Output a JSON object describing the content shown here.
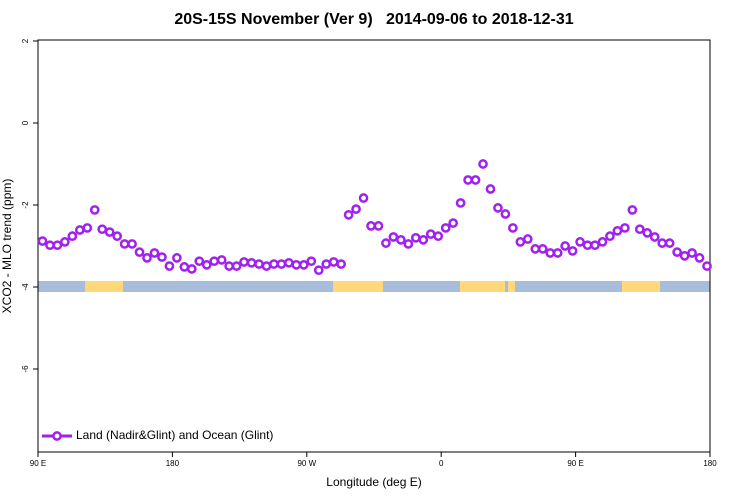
{
  "chart_data": {
    "type": "line",
    "title": "20S-15S November (Ver 9)   2014-09-06 to 2018-12-31",
    "x_label": "Longitude (deg E)",
    "y_label": "XCO2 - MLO trend (ppm)",
    "x": [
      93,
      98,
      103,
      108,
      113,
      118,
      123,
      128,
      133,
      138,
      143,
      148,
      153,
      158,
      163,
      168,
      173,
      178,
      183,
      188,
      193,
      198,
      203,
      208,
      213,
      218,
      223,
      228,
      233,
      238,
      243,
      248,
      253,
      258,
      263,
      268,
      273,
      278,
      283,
      288,
      293,
      298,
      303,
      308,
      313,
      318,
      323,
      328,
      333,
      338,
      343,
      348,
      353,
      358,
      363,
      368,
      373,
      378,
      383,
      388,
      393,
      398,
      403,
      408,
      413,
      418,
      423,
      428,
      433,
      438,
      443,
      448,
      453,
      458,
      463,
      468,
      473,
      478,
      483,
      488,
      493,
      498,
      503,
      508,
      513,
      518,
      523,
      528,
      533,
      538
    ],
    "series": [
      {
        "name": "Land (Nadir&Glint) and Ocean (Glint)",
        "color": "#a020f0",
        "values": [
          -2.88,
          -2.98,
          -2.98,
          -2.9,
          -2.76,
          -2.61,
          -2.56,
          -2.12,
          -2.59,
          -2.66,
          -2.76,
          -2.95,
          -2.95,
          -3.15,
          -3.29,
          -3.17,
          -3.27,
          -3.49,
          -3.29,
          -3.51,
          -3.56,
          -3.37,
          -3.46,
          -3.37,
          -3.34,
          -3.49,
          -3.49,
          -3.39,
          -3.41,
          -3.44,
          -3.49,
          -3.44,
          -3.44,
          -3.41,
          -3.46,
          -3.46,
          -3.37,
          -3.59,
          -3.44,
          -3.39,
          -3.44,
          -2.24,
          -2.1,
          -1.83,
          -2.51,
          -2.51,
          -2.93,
          -2.78,
          -2.85,
          -2.95,
          -2.8,
          -2.85,
          -2.71,
          -2.76,
          -2.56,
          -2.44,
          -1.95,
          -1.39,
          -1.39,
          -1.0,
          -1.61,
          -2.07,
          -2.22,
          -2.56,
          -2.9,
          -2.83,
          -3.07,
          -3.07,
          -3.17,
          -3.17,
          -3.0,
          -3.12,
          -2.9,
          -2.98,
          -2.98,
          -2.9,
          -2.76,
          -2.63,
          -2.56,
          -2.12,
          -2.59,
          -2.68,
          -2.78,
          -2.93,
          -2.93,
          -3.15,
          -3.24,
          -3.17,
          -3.29,
          -3.49
        ]
      }
    ],
    "xlim": [
      90,
      540
    ],
    "xticks": [
      {
        "value": 90,
        "label": "90 E"
      },
      180,
      {
        "value": 270,
        "label": "90 W"
      },
      {
        "value": 360,
        "label": "0"
      },
      {
        "value": 450,
        "label": "90 E"
      },
      {
        "value": 540,
        "label": "180"
      }
    ],
    "ylim": [
      -8,
      2
    ],
    "yticks": [
      2,
      0,
      -2,
      -4,
      -6
    ],
    "legend": "bottom-left"
  }
}
